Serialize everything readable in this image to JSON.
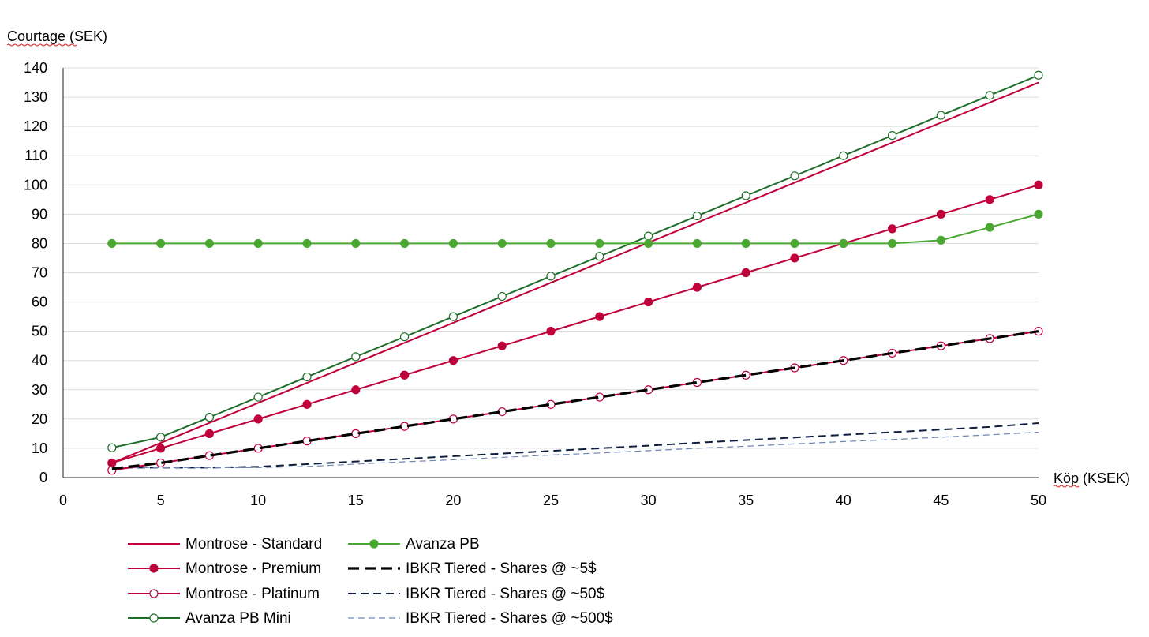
{
  "chart_data": {
    "type": "line",
    "ylabel": "Courtage (SEK)",
    "xlabel": "Köp (KSEK)",
    "xlim": [
      0,
      50
    ],
    "ylim": [
      0,
      140
    ],
    "xticks": [
      0,
      5,
      10,
      15,
      20,
      25,
      30,
      35,
      40,
      45,
      50
    ],
    "yticks": [
      0,
      10,
      20,
      30,
      40,
      50,
      60,
      70,
      80,
      90,
      100,
      110,
      120,
      130,
      140
    ],
    "grid": "horizontal",
    "legend_position": "bottom",
    "series": [
      {
        "name": "Montrose - Standard",
        "color": "#c0003a",
        "style": "line",
        "x": [
          2.5,
          50
        ],
        "y": [
          5,
          135
        ]
      },
      {
        "name": "Montrose - Premium",
        "color": "#c0003a",
        "style": "line-filled-markers",
        "x": [
          2.5,
          5,
          7.5,
          10,
          12.5,
          15,
          17.5,
          20,
          22.5,
          25,
          27.5,
          30,
          32.5,
          35,
          37.5,
          40,
          42.5,
          45,
          47.5,
          50
        ],
        "y": [
          5,
          10,
          15,
          20,
          25,
          30,
          35,
          40,
          45,
          50,
          55,
          60,
          65,
          70,
          75,
          80,
          85,
          90,
          95,
          100
        ]
      },
      {
        "name": "Montrose - Platinum",
        "color": "#c0003a",
        "style": "line-open-markers",
        "x": [
          2.5,
          5,
          7.5,
          10,
          12.5,
          15,
          17.5,
          20,
          22.5,
          25,
          27.5,
          30,
          32.5,
          35,
          37.5,
          40,
          42.5,
          45,
          47.5,
          50
        ],
        "y": [
          2.5,
          5,
          7.5,
          10,
          12.5,
          15,
          17.5,
          20,
          22.5,
          25,
          27.5,
          30,
          32.5,
          35,
          37.5,
          40,
          42.5,
          45,
          47.5,
          50
        ]
      },
      {
        "name": "Avanza PB Mini",
        "color": "#1f6e2a",
        "style": "line-open-markers",
        "x": [
          2.5,
          5,
          7.5,
          10,
          12.5,
          15,
          17.5,
          20,
          22.5,
          25,
          27.5,
          30,
          32.5,
          35,
          37.5,
          40,
          42.5,
          45,
          47.5,
          50
        ],
        "y": [
          10.2,
          13.8,
          20.6,
          27.5,
          34.4,
          41.3,
          48.1,
          55,
          61.9,
          68.8,
          75.6,
          82.5,
          89.4,
          96.3,
          103.1,
          110,
          116.9,
          123.8,
          130.6,
          137.5
        ]
      },
      {
        "name": "Avanza PB",
        "color": "#4aa832",
        "style": "line-filled-markers",
        "x": [
          2.5,
          5,
          7.5,
          10,
          12.5,
          15,
          17.5,
          20,
          22.5,
          25,
          27.5,
          30,
          32.5,
          35,
          37.5,
          40,
          42.5,
          45,
          47.5,
          50
        ],
        "y": [
          80,
          80,
          80,
          80,
          80,
          80,
          80,
          80,
          80,
          80,
          80,
          80,
          80,
          80,
          80,
          80,
          80,
          81.1,
          85.5,
          90
        ]
      },
      {
        "name": "IBKR Tiered - Shares @ ~5$",
        "color": "#000000",
        "style": "thick-dash",
        "x": [
          2.5,
          5,
          7.5,
          10,
          12.5,
          15,
          17.5,
          20,
          22.5,
          25,
          27.5,
          30,
          32.5,
          35,
          37.5,
          40,
          42.5,
          45,
          47.5,
          50
        ],
        "y": [
          3,
          5,
          7.5,
          10,
          12.5,
          15,
          17.5,
          20,
          22.5,
          25,
          27.5,
          30,
          32.5,
          35,
          37.5,
          40,
          42.5,
          45,
          47.5,
          50
        ]
      },
      {
        "name": "IBKR Tiered - Shares @ ~50$",
        "color": "#0d1f3c",
        "style": "dash",
        "x": [
          2.5,
          5,
          7.5,
          10,
          12.5,
          15,
          17.5,
          20,
          22.5,
          25,
          27.5,
          30,
          32.5,
          35,
          37.5,
          40,
          42.5,
          45,
          47.5,
          50
        ],
        "y": [
          3.4,
          3.4,
          3.4,
          3.7,
          4.6,
          5.5,
          6.4,
          7.3,
          8.2,
          9.1,
          10,
          10.9,
          11.9,
          12.8,
          13.7,
          14.6,
          15.5,
          16.4,
          17.3,
          18.6
        ]
      },
      {
        "name": "IBKR Tiered - Shares @ ~500$",
        "color": "#6f86b4",
        "style": "thin-dash",
        "x": [
          2.5,
          5,
          7.5,
          10,
          12.5,
          15,
          17.5,
          20,
          22.5,
          25,
          27.5,
          30,
          32.5,
          35,
          37.5,
          40,
          42.5,
          45,
          47.5,
          50
        ],
        "y": [
          3.4,
          3.4,
          3.4,
          3.4,
          3.8,
          4.6,
          5.4,
          6.1,
          6.9,
          7.7,
          8.4,
          9.2,
          10,
          10.7,
          11.5,
          12.3,
          13,
          13.8,
          14.6,
          15.5
        ]
      }
    ]
  }
}
